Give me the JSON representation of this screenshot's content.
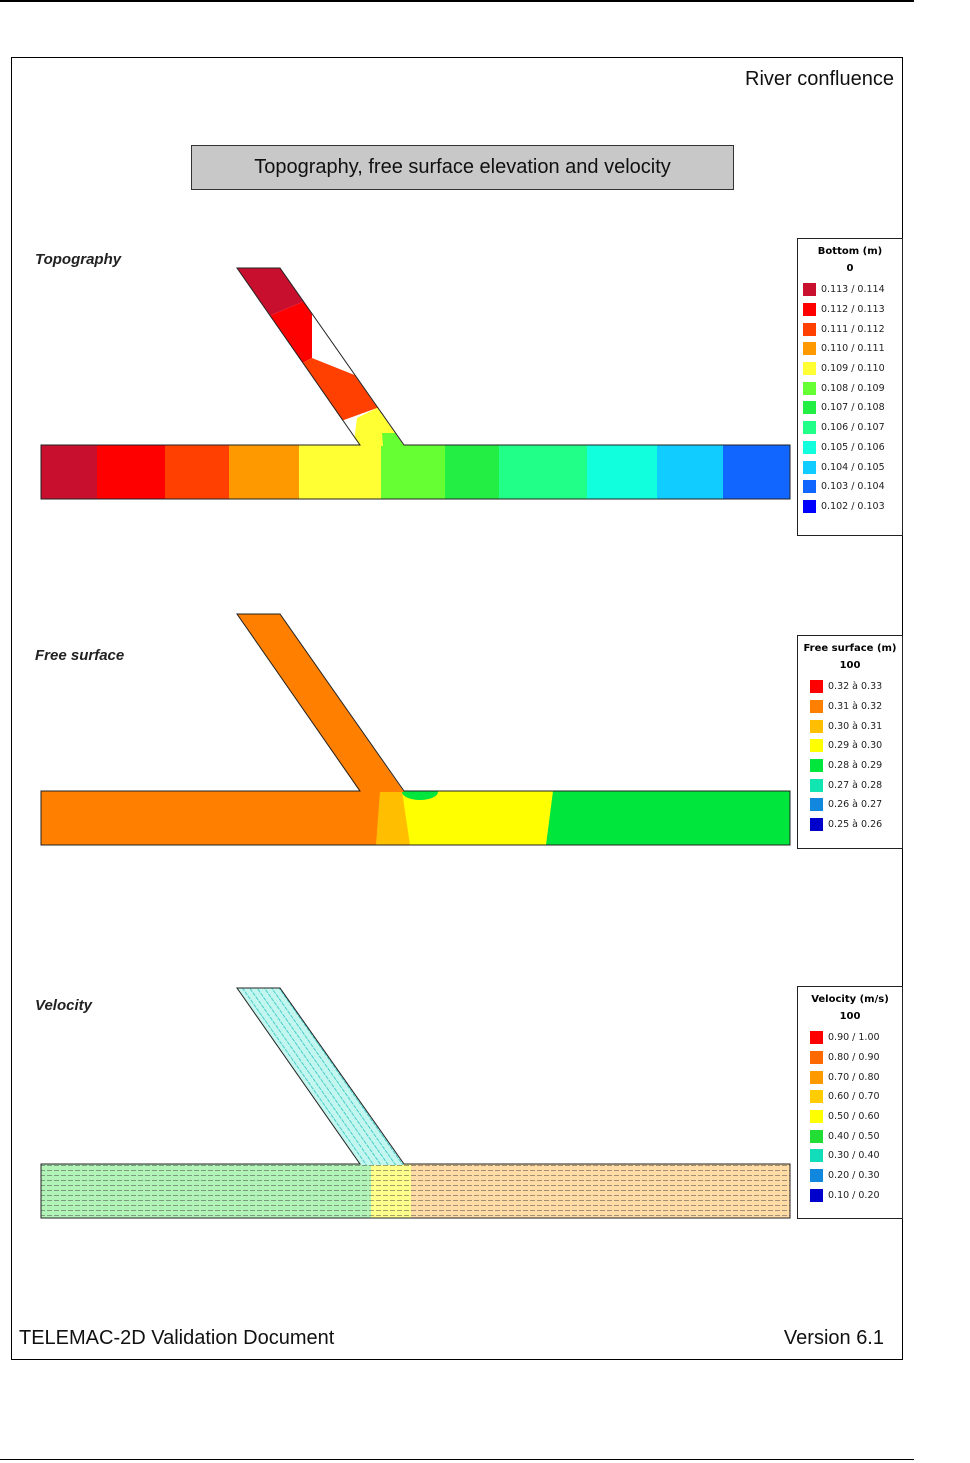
{
  "page": {
    "subtitle": "River confluence",
    "title": "Topography, free surface elevation and velocity",
    "footer_left": "TELEMAC-2D Validation Document",
    "footer_right": "Version 6.1"
  },
  "sections": {
    "topography": {
      "label": "Topography"
    },
    "free_surface": {
      "label": "Free surface"
    },
    "velocity": {
      "label": "Velocity"
    }
  },
  "legends": {
    "bottom": {
      "title": "Bottom (m)",
      "time": "0",
      "items": [
        {
          "label": "0.113  /  0.114",
          "color": "#c8102e"
        },
        {
          "label": "0.112  /  0.113",
          "color": "#ff0000"
        },
        {
          "label": "0.111  /  0.112",
          "color": "#ff4000"
        },
        {
          "label": "0.110  /  0.111",
          "color": "#ff9900"
        },
        {
          "label": "0.109  /  0.110",
          "color": "#ffff33"
        },
        {
          "label": "0.108  /  0.109",
          "color": "#66ff33"
        },
        {
          "label": "0.107  /  0.108",
          "color": "#22ee44"
        },
        {
          "label": "0.106  /  0.107",
          "color": "#22ff88"
        },
        {
          "label": "0.105  /  0.106",
          "color": "#11ffdd"
        },
        {
          "label": "0.104  /  0.105",
          "color": "#11ccff"
        },
        {
          "label": "0.103  /  0.104",
          "color": "#1166ff"
        },
        {
          "label": "0.102  /  0.103",
          "color": "#0000ff"
        }
      ]
    },
    "free_surface": {
      "title": "Free surface (m)",
      "time": "100",
      "items": [
        {
          "label": "0.32 à  0.33",
          "color": "#ff0000"
        },
        {
          "label": "0.31 à  0.32",
          "color": "#ff7f00"
        },
        {
          "label": "0.30 à  0.31",
          "color": "#ffbf00"
        },
        {
          "label": "0.29 à  0.30",
          "color": "#ffff00"
        },
        {
          "label": "0.28 à  0.29",
          "color": "#00e63c"
        },
        {
          "label": "0.27 à  0.28",
          "color": "#11e6b3"
        },
        {
          "label": "0.26 à  0.27",
          "color": "#1188dd"
        },
        {
          "label": "0.25 à  0.26",
          "color": "#0000cc"
        }
      ]
    },
    "velocity": {
      "title": "Velocity (m/s)",
      "time": "100",
      "items": [
        {
          "label": "0.90  /  1.00",
          "color": "#ff0000"
        },
        {
          "label": "0.80  /  0.90",
          "color": "#ff6a00"
        },
        {
          "label": "0.70  /  0.80",
          "color": "#ff9900"
        },
        {
          "label": "0.60  /  0.70",
          "color": "#ffcc00"
        },
        {
          "label": "0.50  /  0.60",
          "color": "#ffff00"
        },
        {
          "label": "0.40  /  0.50",
          "color": "#22dd33"
        },
        {
          "label": "0.30  /  0.40",
          "color": "#11ddbb"
        },
        {
          "label": "0.20  /  0.30",
          "color": "#1188dd"
        },
        {
          "label": "0.10  /  0.20",
          "color": "#0000cc"
        }
      ]
    }
  }
}
